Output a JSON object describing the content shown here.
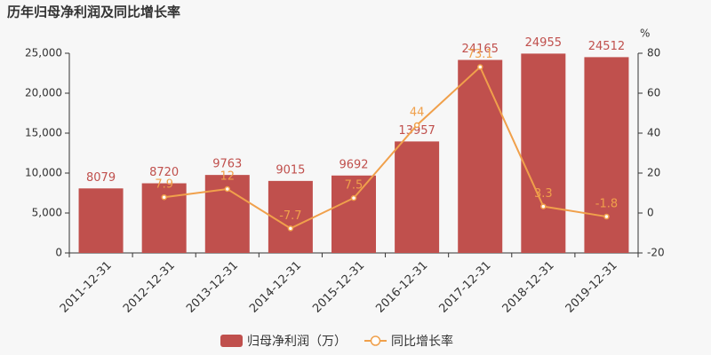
{
  "chart_data": {
    "type": "bar",
    "title": "历年归母净利润及同比增长率",
    "categories": [
      "2011-12-31",
      "2012-12-31",
      "2013-12-31",
      "2014-12-31",
      "2015-12-31",
      "2016-12-31",
      "2017-12-31",
      "2018-12-31",
      "2019-12-31"
    ],
    "series": [
      {
        "name": "归母净利润（万）",
        "type": "bar",
        "color": "#c0504d",
        "axis": "y",
        "values": [
          8079,
          8720,
          9763,
          9015,
          9692,
          13957,
          24165,
          24955,
          24512
        ]
      },
      {
        "name": "同比增长率",
        "type": "line",
        "color": "#f0a04b",
        "axis": "y2",
        "values": [
          null,
          7.9,
          12,
          -7.7,
          7.5,
          44,
          73.1,
          3.3,
          -1.8
        ]
      }
    ],
    "ylim": [
      0,
      25000
    ],
    "yticks": [
      0,
      {
        "value": 5000,
        "label": "5,000"
      },
      {
        "value": 10000,
        "label": "10,000"
      },
      {
        "value": 15000,
        "label": "15,000"
      },
      {
        "value": 20000,
        "label": "20,000"
      },
      {
        "value": 25000,
        "label": "25,000"
      }
    ],
    "y2lim": [
      -20,
      80
    ],
    "y2ticks": [
      -20,
      0,
      20,
      40,
      60,
      80
    ],
    "y2label": "%"
  }
}
